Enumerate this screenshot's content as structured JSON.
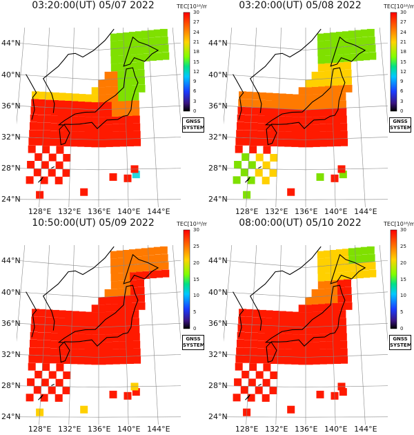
{
  "panels": [
    {
      "title": "03:20:00(UT) 05/07 2022",
      "colorbar_label": "TEC[10¹⁶/m²]",
      "colorbar_ticks": [
        "30",
        "27",
        "24",
        "21",
        "18",
        "15",
        "12",
        "9",
        "6",
        "3",
        "0"
      ],
      "latitudes": [
        "44°N",
        "40°N",
        "36°N",
        "32°N",
        "28°N",
        "24°N"
      ],
      "longitudes": [
        "128°E",
        "132°E",
        "136°E",
        "140°E",
        "144°E"
      ],
      "badge": [
        "GNSS",
        "SYSTEM"
      ]
    },
    {
      "title": "03:20:00(UT) 05/08 2022",
      "colorbar_label": "TEC[10¹⁶/m²]",
      "colorbar_ticks": [
        "30",
        "27",
        "24",
        "21",
        "18",
        "15",
        "12",
        "9",
        "6",
        "3",
        "0"
      ],
      "latitudes": [
        "44°N",
        "40°N",
        "36°N",
        "32°N",
        "28°N",
        "24°N"
      ],
      "longitudes": [
        "128°E",
        "132°E",
        "136°E",
        "140°E",
        "144°E"
      ],
      "badge": [
        "GNSS",
        "SYSTEM"
      ]
    },
    {
      "title": "10:50:00(UT) 05/09 2022",
      "colorbar_label": "TEC[10¹⁶/m²]",
      "colorbar_ticks": [
        "30",
        "25",
        "20",
        "15",
        "10",
        "5",
        "0"
      ],
      "latitudes": [
        "44°N",
        "40°N",
        "36°N",
        "32°N",
        "28°N",
        "24°N"
      ],
      "longitudes": [
        "128°E",
        "132°E",
        "136°E",
        "140°E",
        "144°E"
      ],
      "badge": [
        "GNSS",
        "SYSTEM"
      ]
    },
    {
      "title": "08:00:00(UT) 05/10 2022",
      "colorbar_label": "TEC[10¹⁶/m²]",
      "colorbar_ticks": [
        "30",
        "25",
        "20",
        "15",
        "10",
        "5",
        "0"
      ],
      "latitudes": [
        "44°N",
        "40°N",
        "36°N",
        "32°N",
        "28°N",
        "24°N"
      ],
      "longitudes": [
        "128°E",
        "132°E",
        "136°E",
        "140°E",
        "144°E"
      ],
      "badge": [
        "GNSS",
        "SYSTEM"
      ]
    }
  ],
  "colors": {
    "high": "#ff1a00",
    "orange": "#ff7a00",
    "yellow": "#ffd000",
    "green": "#7fe000",
    "cyan": "#27d7e0",
    "coast": "#000000",
    "grid": "#888888"
  }
}
